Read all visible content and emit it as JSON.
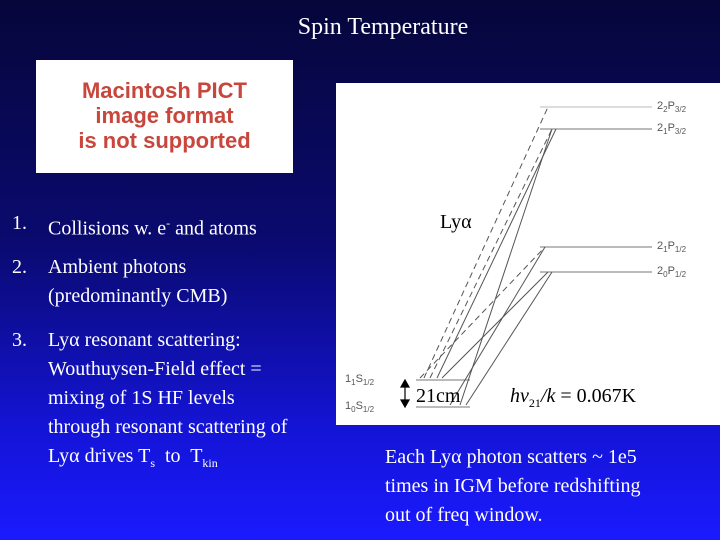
{
  "title": "Spin Temperature",
  "image_placeholder": [
    "Macintosh PICT",
    "image format",
    "is not supported"
  ],
  "list": [
    {
      "number": "1.",
      "lines": [
        [
          {
            "text": "Collisions w. e"
          },
          {
            "sup": "-"
          },
          {
            "text": " and atoms"
          }
        ]
      ]
    },
    {
      "number": "2.",
      "lines": [
        [
          {
            "text": "Ambient photons"
          }
        ],
        [
          {
            "text": "(predominantly CMB)"
          }
        ]
      ]
    },
    {
      "number": "3.",
      "lines": [
        [
          {
            "text": "Lyα resonant scattering:"
          }
        ],
        [
          {
            "text": "Wouthuysen-Field effect ="
          }
        ],
        [
          {
            "text": "mixing of 1S HF levels"
          }
        ],
        [
          {
            "text": "through resonant scattering of"
          }
        ],
        [
          {
            "text": "Lyα drives T"
          },
          {
            "sub": "s"
          },
          {
            "text": "  to  T"
          },
          {
            "sub": "kin"
          }
        ]
      ]
    }
  ],
  "diagram": {
    "upper_levels": [
      {
        "n": "2",
        "f": "2",
        "l": "P",
        "j": "3/2"
      },
      {
        "n": "2",
        "f": "1",
        "l": "P",
        "j": "3/2"
      },
      {
        "n": "2",
        "f": "1",
        "l": "P",
        "j": "1/2"
      },
      {
        "n": "2",
        "f": "0",
        "l": "P",
        "j": "1/2"
      }
    ],
    "ground_levels": [
      {
        "n": "1",
        "f": "1",
        "l": "S",
        "j": "1/2"
      },
      {
        "n": "1",
        "f": "0",
        "l": "S",
        "j": "1/2"
      }
    ],
    "lya_label": "Lyα",
    "hf_label": "21cm",
    "energy": [
      {
        "italic": "hν"
      },
      {
        "sub": "21"
      },
      {
        "italic": "/k"
      },
      {
        "text": " = 0.067K"
      }
    ]
  },
  "caption": [
    "Each Lyα photon scatters ~ 1e5",
    "times in IGM before redshifting",
    "out of freq window."
  ]
}
